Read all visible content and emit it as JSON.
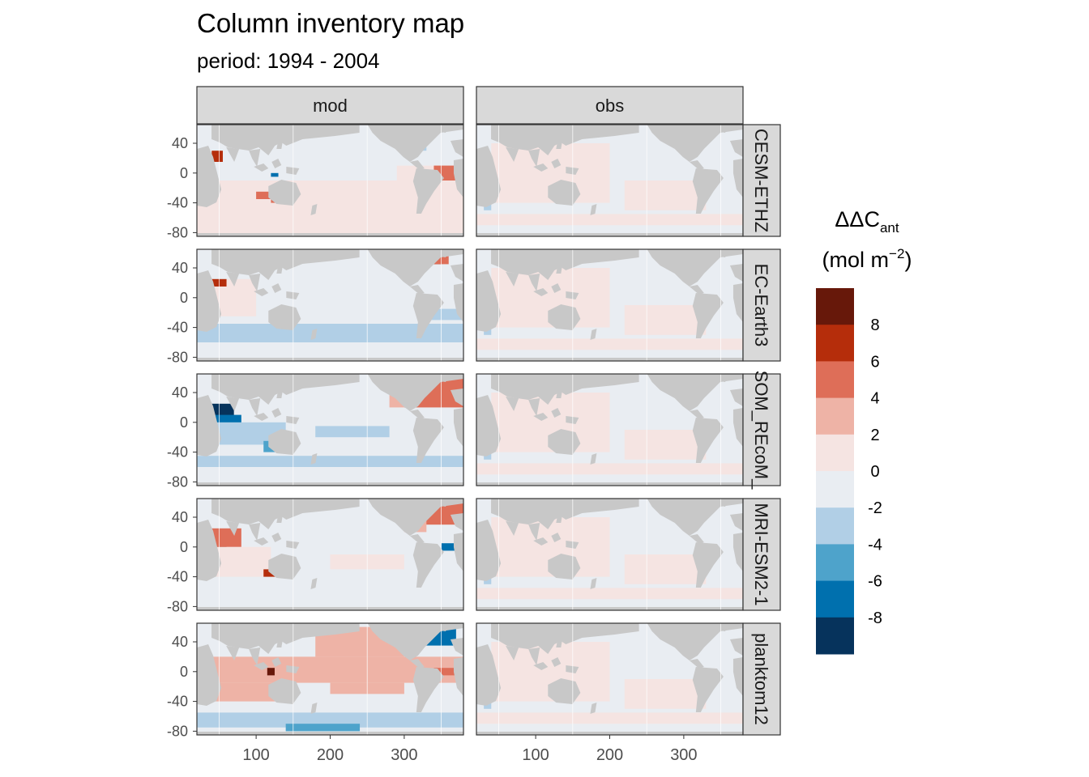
{
  "chart_data": {
    "type": "heatmap",
    "title": "Column inventory map",
    "subtitle": "period: 1994 - 2004",
    "columns": [
      "mod",
      "obs"
    ],
    "rows": [
      "CESM-ETHZ",
      "EC-Earth3",
      "FESOM_REcoM_LR",
      "MRI-ESM2-1",
      "planktom12"
    ],
    "row_strip_labels_visible": [
      "CESM-ETHZ",
      "EC-Earth3",
      "SOM_REcoM_",
      "MRI-ESM2-1",
      "planktom12"
    ],
    "x_ticks": [
      "100",
      "200",
      "300"
    ],
    "y_ticks": [
      "40",
      "0",
      "-40",
      "-80"
    ],
    "xlim": [
      20,
      380
    ],
    "ylim": [
      -85,
      65
    ],
    "legend": {
      "title_main": "ΔΔC",
      "title_sub": "ant",
      "units_prefix": "(mol m",
      "units_sup": "−2",
      "units_suffix": ")",
      "breaks": [
        "8",
        "6",
        "4",
        "2",
        "0",
        "-2",
        "-4",
        "-6",
        "-8"
      ],
      "colors": [
        "#67180a",
        "#b52d0b",
        "#de6e58",
        "#eeb3a6",
        "#f5e4e2",
        "#e9edf2",
        "#b1cfe6",
        "#4ea3cb",
        "#0070ae",
        "#06335c"
      ],
      "position": "right"
    },
    "colors": {
      "land": "#c8c8c8",
      "strip": "#d9d9d9",
      "grid": "#ffffff"
    }
  }
}
